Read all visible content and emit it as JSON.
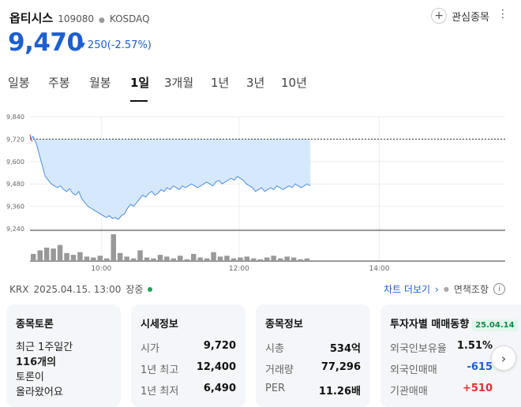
{
  "header": {
    "stock_name": "옵티시스",
    "stock_code": "109080",
    "market": "KOSDAQ",
    "watch_label": "관심종목"
  },
  "quote": {
    "price": "9,470",
    "change": "250(-2.57%)",
    "direction": "down",
    "color": "#1b5fd1"
  },
  "tabs": [
    {
      "label": "일봉"
    },
    {
      "label": "주봉"
    },
    {
      "label": "월봉"
    },
    {
      "label": "1일",
      "active": true
    },
    {
      "label": "3개월"
    },
    {
      "label": "1년"
    },
    {
      "label": "3년"
    },
    {
      "label": "10년"
    }
  ],
  "chart_data": {
    "type": "area",
    "yticks": [
      "9,840",
      "9,720",
      "9,600",
      "9,480",
      "9,360",
      "9,240"
    ],
    "ytick_values": [
      9840,
      9720,
      9600,
      9480,
      9360,
      9240
    ],
    "xticks": [
      "10:00",
      "12:00",
      "14:00"
    ],
    "ylim": [
      9240,
      9840
    ],
    "prev_close": 9720,
    "series": [
      {
        "values": [
          9720,
          9735,
          9700,
          9640,
          9580,
          9520,
          9500,
          9480,
          9470,
          9460,
          9470,
          9450,
          9440,
          9455,
          9430,
          9420,
          9440,
          9400,
          9380,
          9360,
          9350,
          9340,
          9330,
          9320,
          9310,
          9300,
          9310,
          9295,
          9300,
          9290,
          9310,
          9320,
          9350,
          9370,
          9360,
          9380,
          9400,
          9420,
          9410,
          9430,
          9440,
          9420,
          9430,
          9450,
          9440,
          9460,
          9450,
          9470,
          9460,
          9450,
          9470,
          9460,
          9470,
          9480,
          9470,
          9460,
          9470,
          9480,
          9490,
          9480,
          9470,
          9490,
          9500,
          9480,
          9490,
          9500,
          9510,
          9500,
          9520,
          9510,
          9500,
          9480,
          9470,
          9460,
          9440,
          9450,
          9460,
          9440,
          9450,
          9460,
          9450,
          9470,
          9460,
          9450,
          9460,
          9470,
          9460,
          9480,
          9470,
          9460,
          9470,
          9480,
          9470
        ]
      }
    ],
    "volume": [
      8,
      12,
      15,
      14,
      18,
      9,
      7,
      10,
      5,
      4,
      6,
      3,
      30,
      9,
      5,
      3,
      12,
      4,
      3,
      7,
      5,
      3,
      6,
      2,
      8,
      4,
      3,
      10,
      5,
      6,
      3,
      4,
      5,
      3,
      2,
      4,
      6,
      3,
      5,
      4,
      2,
      3
    ],
    "grid": true
  },
  "meta": {
    "exchange": "KRX",
    "timestamp": "2025.04.15. 13:00",
    "status": "장중",
    "chart_link": "차트 더보기",
    "disclaimer": "면책조항"
  },
  "cards": {
    "discussion": {
      "title": "종목토론",
      "line1": "최근 1주일간",
      "count": "116개의",
      "line3": "토론이",
      "line4": "올라왔어요"
    },
    "quote_info": {
      "title": "시세정보",
      "rows": [
        {
          "label": "시가",
          "value": "9,720"
        },
        {
          "label": "1년 최고",
          "value": "12,400"
        },
        {
          "label": "1년 최저",
          "value": "6,490"
        }
      ]
    },
    "stock_info": {
      "title": "종목정보",
      "rows": [
        {
          "label": "시총",
          "value": "534억"
        },
        {
          "label": "거래량",
          "value": "77,296"
        },
        {
          "label": "PER",
          "value": "11.26배"
        }
      ]
    },
    "investor": {
      "title": "투자자별 매매동향",
      "date": "25.04.14",
      "rows": [
        {
          "label": "외국인보유율",
          "value": "1.51%"
        },
        {
          "label": "외국인매매",
          "value": "-615"
        },
        {
          "label": "기관매매",
          "value": "+510"
        }
      ]
    }
  },
  "colors": {
    "down": "#1b5fd1",
    "up": "#e03131",
    "area_fill": "#d6e8fb"
  }
}
